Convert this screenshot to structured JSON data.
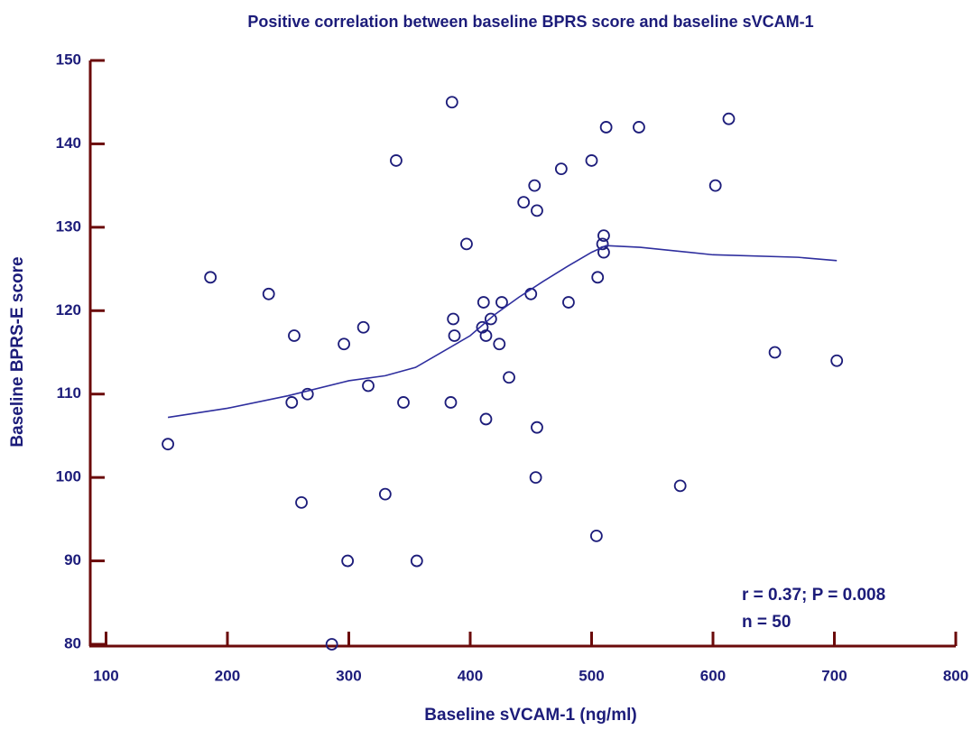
{
  "chart_data": {
    "type": "scatter",
    "title": "Positive correlation between baseline BPRS score and baseline sVCAM-1",
    "x_label": "Baseline sVCAM-1 (ng/ml)",
    "y_label": "Baseline BPRS-E score",
    "annotations": [
      "r = 0.37; P = 0.008",
      "n = 50"
    ],
    "xlim": [
      87,
      800
    ],
    "xticks": [
      100,
      200,
      300,
      400,
      500,
      600,
      700,
      800
    ],
    "ylim": [
      80,
      150
    ],
    "yticks": [
      80,
      90,
      100,
      110,
      120,
      130,
      140,
      150
    ],
    "series": [
      {
        "color": "#1c1c7a",
        "x": [
          151,
          186,
          234,
          255,
          253,
          266,
          261,
          296,
          312,
          316,
          299,
          330,
          339,
          345,
          356,
          286,
          385,
          384,
          386,
          387,
          397,
          410,
          411,
          413,
          413,
          417,
          424,
          426,
          432,
          444,
          450,
          453,
          454,
          455,
          455,
          475,
          481,
          500,
          509,
          504,
          505,
          510,
          510,
          512,
          539,
          573,
          602,
          613,
          651,
          702
        ],
        "values": [
          104,
          124,
          122,
          117,
          109,
          110,
          97,
          116,
          118,
          111,
          90,
          98,
          138,
          109,
          90,
          80,
          145,
          109,
          119,
          117,
          128,
          118,
          121,
          107,
          117,
          119,
          116,
          121,
          112,
          133,
          122,
          135,
          100,
          132,
          106,
          137,
          121,
          138,
          128,
          93,
          124,
          127,
          129,
          142,
          142,
          99,
          135,
          143,
          115,
          114
        ]
      },
      {
        "type": "line",
        "color": "#2e2e9e",
        "x": [
          151,
          200,
          250,
          300,
          330,
          355,
          380,
          400,
          420,
          440,
          460,
          480,
          500,
          512,
          540,
          600,
          670,
          702
        ],
        "values": [
          107.2,
          108.3,
          109.8,
          111.6,
          112.2,
          113.2,
          115.3,
          117,
          119.5,
          121.6,
          123.5,
          125.3,
          127,
          127.8,
          127.6,
          126.7,
          126.4,
          126.0
        ]
      }
    ]
  }
}
